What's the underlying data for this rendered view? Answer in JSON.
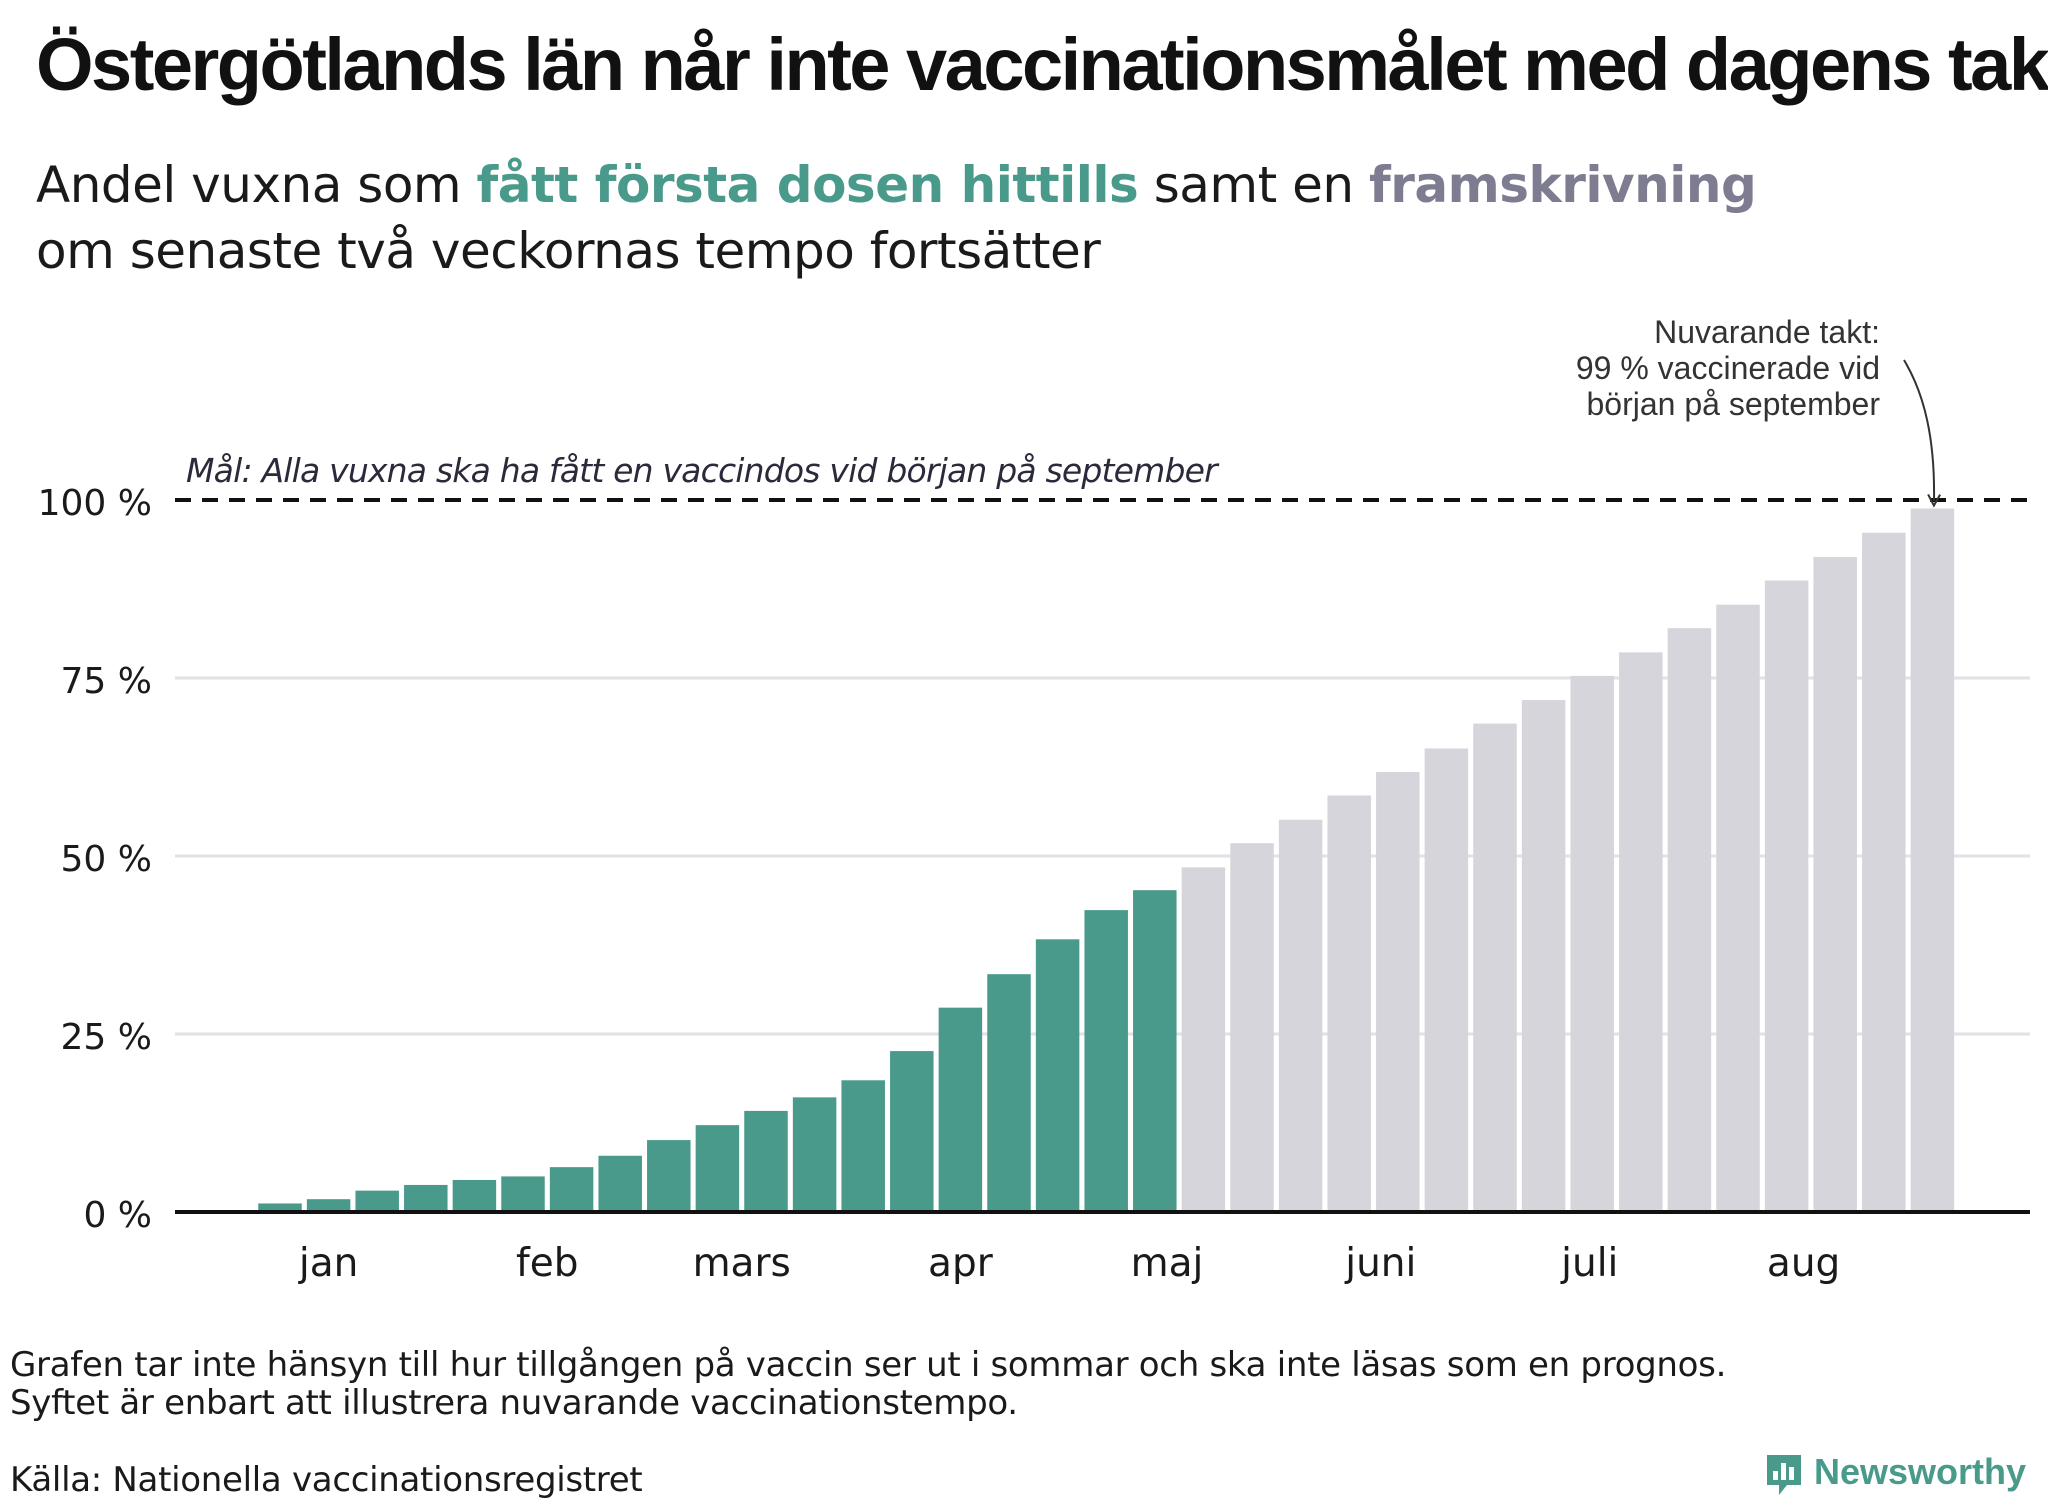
{
  "title": "Östergötlands län når inte vaccinationsmålet med dagens takt",
  "subtitle": {
    "part1": "Andel vuxna som ",
    "highlight_actual": "fått första dosen hittills",
    "part2": " samt en ",
    "highlight_projection": "framskrivning",
    "line2": "om senaste två veckornas tempo fortsätter"
  },
  "footnote": {
    "line1": "Grafen tar inte hänsyn till hur tillgången på vaccin ser ut i sommar och ska inte läsas som en prognos.",
    "line2": "Syftet är enbart att illustrera nuvarande vaccinationstempo."
  },
  "source": "Källa: Nationella vaccinationsregistret",
  "logo": {
    "name": "Newsworthy"
  },
  "colors": {
    "actual": "#4a9a8c",
    "projection": "#d6d5dc",
    "projection_text": "#7e7c90",
    "grid": "#e2e2e6",
    "axis": "#111111"
  },
  "chart_data": {
    "type": "bar",
    "ylim": [
      0,
      100
    ],
    "y_ticks": [
      {
        "value": 0,
        "label": "0 %"
      },
      {
        "value": 25,
        "label": "25 %"
      },
      {
        "value": 50,
        "label": "50 %"
      },
      {
        "value": 75,
        "label": "75 %"
      },
      {
        "value": 100,
        "label": "100 %"
      }
    ],
    "x_month_labels": [
      {
        "label": "jan",
        "at_bar": 1
      },
      {
        "label": "feb",
        "at_bar": 5.5
      },
      {
        "label": "mars",
        "at_bar": 9.5
      },
      {
        "label": "apr",
        "at_bar": 14
      },
      {
        "label": "maj",
        "at_bar": 18.25
      },
      {
        "label": "juni",
        "at_bar": 22.65
      },
      {
        "label": "juli",
        "at_bar": 26.95
      },
      {
        "label": "aug",
        "at_bar": 31.35
      }
    ],
    "series": [
      {
        "name": "fått första dosen hittills",
        "values": [
          1.2,
          1.8,
          3.0,
          3.8,
          4.5,
          5.0,
          6.3,
          7.9,
          10.1,
          12.2,
          14.2,
          16.1,
          18.5,
          22.6,
          28.7,
          33.4,
          38.3,
          42.4,
          45.2
        ]
      },
      {
        "name": "framskrivning",
        "values": [
          48.4,
          51.8,
          55.1,
          58.5,
          61.8,
          65.1,
          68.6,
          71.9,
          75.3,
          78.6,
          82.0,
          85.3,
          88.7,
          92.0,
          95.4,
          98.8
        ]
      }
    ],
    "goal": {
      "value": 100,
      "label": "Mål: Alla vuxna ska ha fått en vaccindos vid början på september"
    },
    "annotation": {
      "lines": [
        "Nuvarande takt:",
        "99 % vaccinerade vid",
        "början på september"
      ]
    }
  }
}
